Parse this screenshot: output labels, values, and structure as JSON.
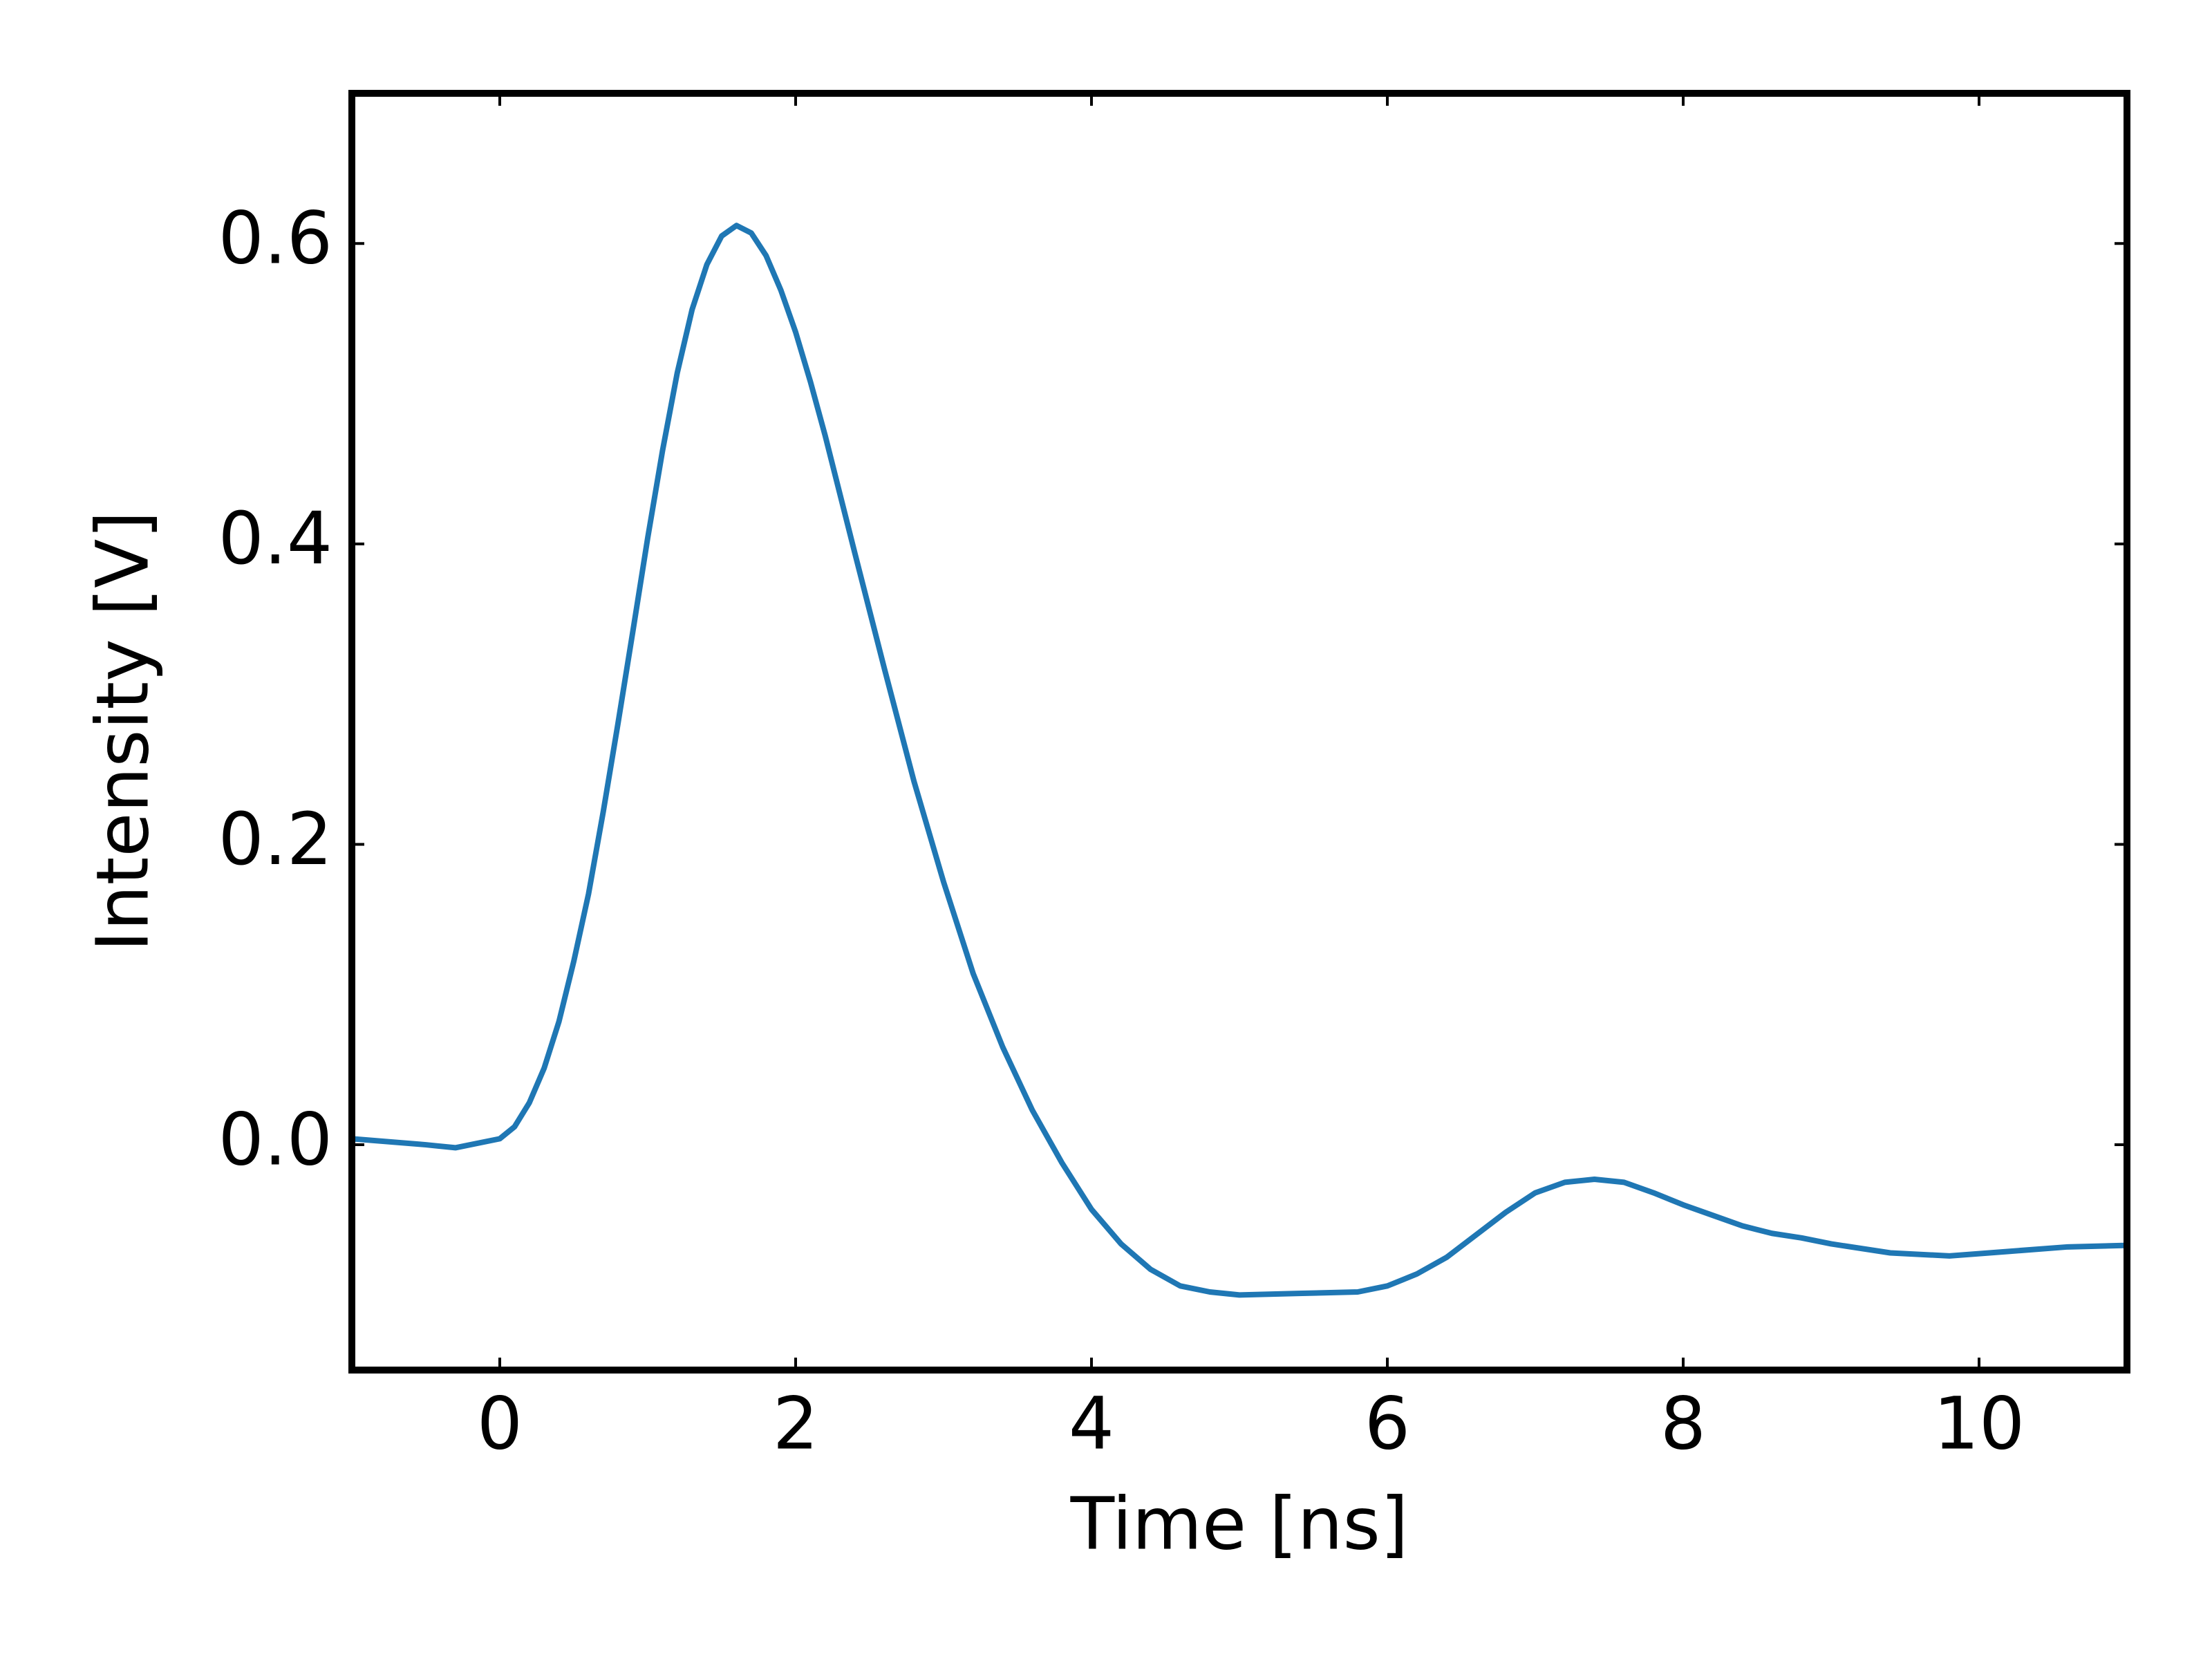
{
  "chart_data": {
    "type": "line",
    "x_label": "Time [ns]",
    "y_label": "Intensity [V]",
    "xlim": [
      -1,
      11
    ],
    "ylim": [
      -0.15,
      0.7
    ],
    "xticks": [
      0,
      2,
      4,
      6,
      8,
      10
    ],
    "yticks": [
      {
        "value": 0,
        "label": "0.0"
      },
      0.2,
      0.4,
      0.6
    ],
    "series": [
      {
        "color": "#1f77b4",
        "x": [
          -1,
          -0.5,
          -0.3,
          0,
          0.1,
          0.2,
          0.3,
          0.4,
          0.5,
          0.6,
          0.7,
          0.8,
          0.9,
          1.0,
          1.1,
          1.2,
          1.3,
          1.4,
          1.5,
          1.6,
          1.7,
          1.8,
          1.9,
          2.0,
          2.1,
          2.2,
          2.4,
          2.6,
          2.8,
          3.0,
          3.2,
          3.4,
          3.6,
          3.8,
          4.0,
          4.2,
          4.4,
          4.6,
          4.8,
          5.0,
          5.4,
          5.8,
          6.0,
          6.2,
          6.4,
          6.6,
          6.8,
          7.0,
          7.2,
          7.4,
          7.6,
          7.8,
          8.0,
          8.2,
          8.4,
          8.6,
          8.8,
          9.0,
          9.4,
          9.8,
          10.2,
          10.6,
          11.0
        ],
        "values": [
          0.004,
          0.0,
          -0.002,
          0.004,
          0.012,
          0.028,
          0.051,
          0.082,
          0.122,
          0.167,
          0.222,
          0.281,
          0.342,
          0.404,
          0.462,
          0.514,
          0.556,
          0.586,
          0.605,
          0.612,
          0.607,
          0.592,
          0.569,
          0.541,
          0.508,
          0.472,
          0.394,
          0.317,
          0.242,
          0.175,
          0.114,
          0.065,
          0.023,
          -0.012,
          -0.043,
          -0.066,
          -0.083,
          -0.094,
          -0.098,
          -0.1,
          -0.099,
          -0.098,
          -0.094,
          -0.086,
          -0.075,
          -0.06,
          -0.045,
          -0.032,
          -0.025,
          -0.023,
          -0.025,
          -0.032,
          -0.04,
          -0.047,
          -0.054,
          -0.059,
          -0.062,
          -0.066,
          -0.072,
          -0.074,
          -0.071,
          -0.068,
          -0.067
        ]
      }
    ]
  }
}
